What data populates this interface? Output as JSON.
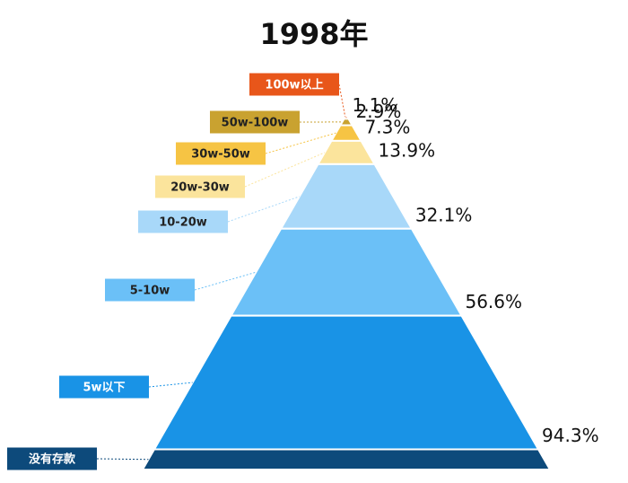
{
  "chart_data": {
    "type": "pyramid",
    "title": "1998年",
    "categories": [
      "100w以上",
      "50w-100w",
      "30w-50w",
      "20w-30w",
      "10-20w",
      "5-10w",
      "5w以下",
      "没有存款"
    ],
    "values": [
      1.1,
      2.9,
      7.3,
      13.9,
      32.1,
      56.6,
      94.3,
      null
    ],
    "value_labels": [
      "1.1%",
      "2.9%",
      "7.3%",
      "13.9%",
      "32.1%",
      "56.6%",
      "94.3%",
      null
    ],
    "colors": [
      "#e8561a",
      "#c9a230",
      "#f6c444",
      "#fbe49c",
      "#a8d8f9",
      "#6bc0f7",
      "#1993e6",
      "#0d4a7b"
    ],
    "ylim": [
      0,
      100
    ]
  }
}
